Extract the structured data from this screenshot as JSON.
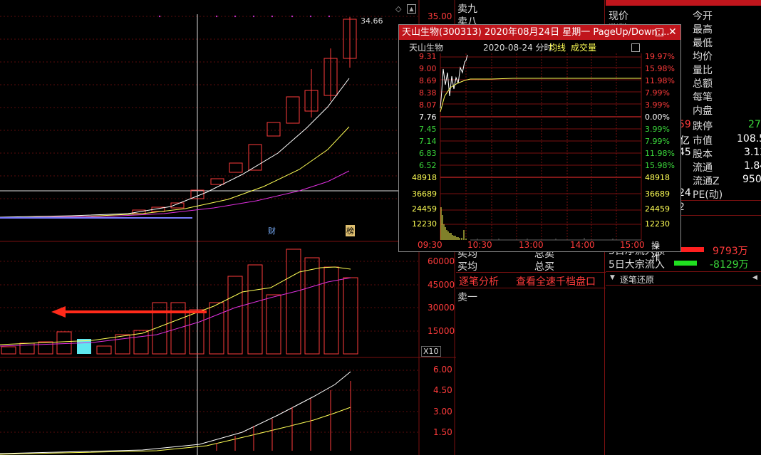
{
  "kline": {
    "price_axis": [
      "35.00"
    ],
    "high_marker": "34.66",
    "event_markers": [
      "财",
      "榜"
    ]
  },
  "volume": {
    "axis": [
      "60000",
      "45000",
      "30000",
      "15000"
    ],
    "multiplier": "X10"
  },
  "indicator": {
    "axis": [
      "6.00",
      "4.50",
      "3.00",
      "1.50"
    ]
  },
  "order_book": {
    "top_items": [
      "卖九",
      "卖八"
    ],
    "bottom_items": [
      "买均",
      "买均"
    ],
    "bottom_right": [
      "总卖",
      "总买"
    ],
    "tabs": [
      "逐笔分析",
      "查看全速千档盘口"
    ],
    "sell1": "卖一"
  },
  "quote": {
    "header_partial": "300313 天山生物",
    "labels_left": [
      "现价",
      "涨跌"
    ],
    "labels_right": [
      "今开",
      "最高",
      "最低",
      "均价",
      "量比",
      "总额",
      "每笔",
      "内盘"
    ],
    "mid_rows": [
      {
        "left": "59",
        "label": "跌停",
        "value": "27"
      },
      {
        "left": "亿",
        "label": "市值",
        "value": "108.5"
      },
      {
        "left": "45",
        "label": "股本",
        "value": "3.13"
      },
      {
        "left": "",
        "label": "流通",
        "value": "1.84"
      },
      {
        "left": "",
        "label": "流通Z",
        "value": "9500"
      },
      {
        "left": "24",
        "label": "PE(动)",
        "value": ""
      }
    ],
    "extra_char": "2",
    "flow1_label": "5日净流入额",
    "flow1_value": "9793万",
    "flow2_label": "5日大宗流入",
    "flow2_value": "-8129万",
    "section": "逐笔还原"
  },
  "popup": {
    "title": "天山生物(300313) 2020年08月24日 星期一 PageUp/Down:...",
    "sub_name": "天山生物",
    "sub_date": "2020-08-24 分时",
    "sub_avg": "均线",
    "sub_vol": "成交量",
    "left_prices": [
      "9.31",
      "9.00",
      "8.69",
      "8.38",
      "8.07",
      "7.76",
      "7.45",
      "7.14",
      "6.83",
      "6.52"
    ],
    "right_pcts": [
      "19.97%",
      "15.98%",
      "11.98%",
      "7.99%",
      "3.99%",
      "0.00%",
      "3.99%",
      "7.99%",
      "11.98%",
      "15.98%"
    ],
    "vol_left": [
      "48918",
      "36689",
      "24459",
      "12230"
    ],
    "vol_right": [
      "48918",
      "36689",
      "24459",
      "12230"
    ],
    "times": [
      "09:30",
      "10:30",
      "13:00",
      "14:00",
      "15:00"
    ],
    "ops": "操作"
  }
}
